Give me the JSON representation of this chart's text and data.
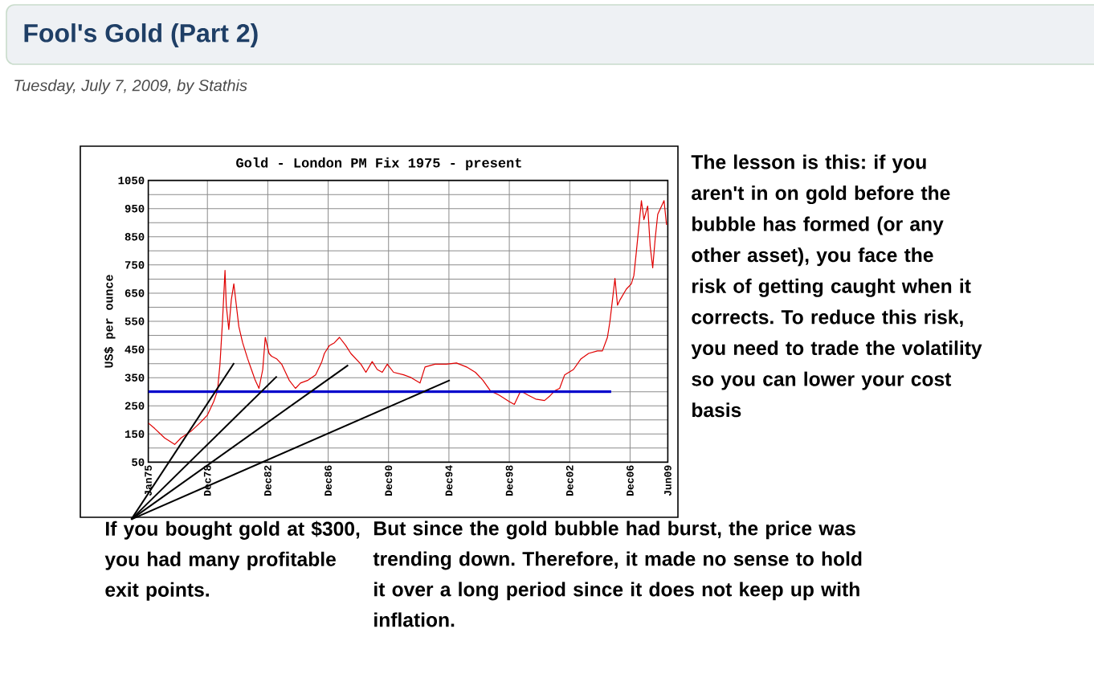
{
  "chart_data": {
    "type": "line",
    "title": "Fool's Gold (Part 2)",
    "subtitle": "Tuesday, July 7, 2009, by Stathis",
    "ylabel": "US$ per ounce",
    "annotations": [
      "Gold - London PM Fix 1975 - present",
      "The lesson is this: if you aren't in on gold before the bubble has formed (or any other asset), you face the risk of getting caught when it corrects. To reduce this risk, you need to trade the volatility so you can lower your cost basis",
      "If you bought gold at $300, you had many profitable exit points.",
      "But since the gold bubble had burst, the price was trending down. Therefore, it made no sense to hold it over a long period since it does not keep up with inflation."
    ],
    "xlim": [
      "1975-01",
      "2009-06"
    ],
    "xticks": [
      {
        "value": "1975-01",
        "label": "Jan75"
      },
      {
        "value": "1978-12",
        "label": "Dec78"
      },
      {
        "value": "1982-12",
        "label": "Dec82"
      },
      {
        "value": "1986-12",
        "label": "Dec86"
      },
      {
        "value": "1990-12",
        "label": "Dec90"
      },
      {
        "value": "1994-12",
        "label": "Dec94"
      },
      {
        "value": "1998-12",
        "label": "Dec98"
      },
      {
        "value": "2002-12",
        "label": "Dec02"
      },
      {
        "value": "2006-12",
        "label": "Dec06"
      },
      {
        "value": "2009-06",
        "label": "Jun09"
      }
    ],
    "ylim": [
      50,
      1050
    ],
    "yticks": [
      50,
      {
        "value": 100,
        "label": null
      },
      150,
      {
        "value": 200,
        "label": null
      },
      250,
      {
        "value": 300,
        "label": null
      },
      350,
      {
        "value": 400,
        "label": null
      },
      450,
      {
        "value": 500,
        "label": null
      },
      550,
      {
        "value": 600,
        "label": null
      },
      650,
      {
        "value": 700,
        "label": null
      },
      750,
      {
        "value": 800,
        "label": null
      },
      850,
      {
        "value": 900,
        "label": null
      },
      950,
      {
        "value": 1000,
        "label": null
      },
      1050
    ],
    "grid": true,
    "series": [
      {
        "color": "#e00000",
        "x": [
          "1975-01",
          "1975-06",
          "1976-02",
          "1976-10",
          "1977-03",
          "1977-11",
          "1978-06",
          "1978-12",
          "1979-05",
          "1979-08",
          "1979-10",
          "1979-12",
          "1980-02",
          "1980-03",
          "1980-05",
          "1980-07",
          "1980-09",
          "1980-11",
          "1981-01",
          "1981-04",
          "1981-08",
          "1981-11",
          "1982-02",
          "1982-05",
          "1982-08",
          "1982-10",
          "1983-01",
          "1983-03",
          "1983-07",
          "1983-11",
          "1984-05",
          "1984-10",
          "1985-02",
          "1985-08",
          "1986-02",
          "1986-07",
          "1986-09",
          "1987-01",
          "1987-05",
          "1987-09",
          "1988-02",
          "1988-06",
          "1988-10",
          "1989-02",
          "1989-06",
          "1989-11",
          "1990-03",
          "1990-07",
          "1990-11",
          "1991-04",
          "1991-12",
          "1992-06",
          "1993-01",
          "1993-05",
          "1994-01",
          "1994-10",
          "1995-06",
          "1996-02",
          "1996-09",
          "1997-03",
          "1997-09",
          "1998-04",
          "1998-12",
          "1999-04",
          "1999-09",
          "2000-03",
          "2000-09",
          "2001-04",
          "2001-08",
          "2001-12",
          "2002-04",
          "2002-08",
          "2003-03",
          "2003-09",
          "2004-03",
          "2004-10",
          "2005-02",
          "2005-06",
          "2005-08",
          "2005-10",
          "2005-12",
          "2006-02",
          "2006-04",
          "2006-09",
          "2007-01",
          "2007-03",
          "2007-05",
          "2007-09",
          "2007-11",
          "2008-02",
          "2008-04",
          "2008-06",
          "2008-08",
          "2008-10",
          "2009-03",
          "2009-05"
        ],
        "values": [
          189,
          170,
          136,
          113,
          136,
          160,
          189,
          217,
          265,
          303,
          398,
          550,
          731,
          607,
          521,
          626,
          683,
          607,
          531,
          474,
          417,
          379,
          341,
          312,
          379,
          493,
          436,
          426,
          417,
          398,
          341,
          312,
          331,
          341,
          360,
          407,
          436,
          464,
          474,
          493,
          464,
          436,
          417,
          398,
          369,
          407,
          379,
          369,
          398,
          369,
          360,
          350,
          331,
          388,
          398,
          398,
          402,
          388,
          369,
          341,
          303,
          288,
          265,
          255,
          303,
          288,
          274,
          269,
          284,
          303,
          312,
          360,
          379,
          417,
          436,
          445,
          445,
          493,
          550,
          626,
          702,
          607,
          626,
          664,
          683,
          712,
          797,
          978,
          911,
          959,
          816,
          740,
          845,
          930,
          978,
          892
        ]
      },
      {
        "color": "#0000cc",
        "x": [
          "1975-01",
          "2005-09"
        ],
        "values": [
          300,
          300
        ]
      }
    ]
  }
}
